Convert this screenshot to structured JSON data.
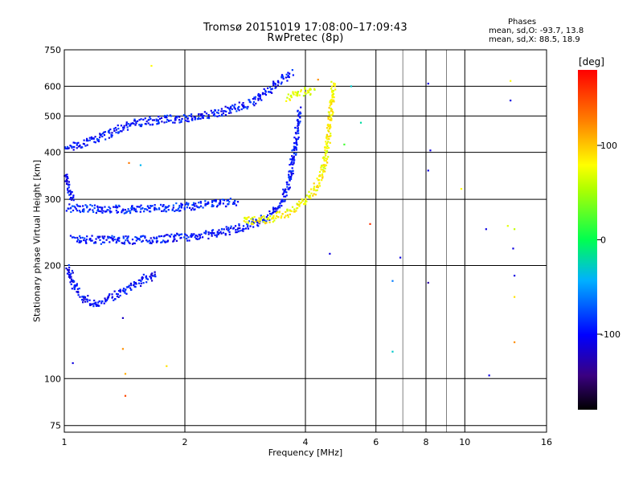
{
  "header": {
    "title_line1": "Tromsø 20151019 17:08:00–17:09:43",
    "title_line2": "RwPretec (8p)"
  },
  "stats": {
    "title": "Phases",
    "line_o": "mean, sd,O: -93.7, 13.8",
    "line_x": "mean, sd,X:  88.5, 18.9"
  },
  "chart_data": {
    "type": "scatter",
    "xlabel": "Frequency [MHz]",
    "ylabel": "Stationary phase Virtual Height [km]",
    "x_scale": "log",
    "y_scale": "log",
    "xlim": [
      1,
      16
    ],
    "ylim": [
      72,
      750
    ],
    "x_ticks": [
      1,
      2,
      4,
      6,
      8,
      10,
      16
    ],
    "x_tick_labels": [
      "1",
      "2",
      "4",
      "6",
      "8",
      "10",
      "16"
    ],
    "y_ticks": [
      75,
      100,
      200,
      300,
      400,
      500,
      600,
      750
    ],
    "y_tick_labels": [
      "75",
      "100",
      "200",
      "300",
      "400",
      "500",
      "600",
      "750"
    ],
    "colorbar": {
      "label": "[deg]",
      "range": [
        -180,
        180
      ],
      "ticks": [
        -100,
        0,
        100
      ],
      "tick_labels": [
        "-100",
        "0",
        "100"
      ]
    },
    "grid": true,
    "traces": [
      {
        "mode": "O",
        "phase": -95,
        "points": [
          [
            1.05,
            235
          ],
          [
            1.2,
            234
          ],
          [
            1.5,
            234
          ],
          [
            1.8,
            236
          ],
          [
            2.0,
            238
          ],
          [
            2.3,
            242
          ],
          [
            2.6,
            248
          ],
          [
            2.9,
            256
          ],
          [
            3.1,
            264
          ],
          [
            3.3,
            275
          ],
          [
            3.45,
            290
          ],
          [
            3.55,
            310
          ],
          [
            3.65,
            340
          ],
          [
            3.72,
            380
          ],
          [
            3.78,
            420
          ],
          [
            3.82,
            470
          ],
          [
            3.85,
            520
          ]
        ]
      },
      {
        "mode": "O-F2b",
        "phase": -90,
        "points": [
          [
            1.02,
            285
          ],
          [
            1.2,
            283
          ],
          [
            1.5,
            282
          ],
          [
            1.8,
            285
          ],
          [
            2.1,
            288
          ],
          [
            2.4,
            292
          ],
          [
            2.7,
            296
          ]
        ]
      },
      {
        "mode": "O-F1",
        "phase": -100,
        "points": [
          [
            1.02,
            200
          ],
          [
            1.05,
            180
          ],
          [
            1.1,
            165
          ],
          [
            1.2,
            158
          ],
          [
            1.4,
            170
          ],
          [
            1.6,
            185
          ],
          [
            1.7,
            190
          ]
        ]
      },
      {
        "mode": "O-high",
        "phase": -95,
        "points": [
          [
            1.0,
            410
          ],
          [
            1.1,
            420
          ],
          [
            1.3,
            450
          ],
          [
            1.5,
            480
          ],
          [
            1.8,
            490
          ],
          [
            2.1,
            495
          ],
          [
            2.5,
            515
          ],
          [
            2.9,
            540
          ],
          [
            3.2,
            580
          ],
          [
            3.5,
            625
          ],
          [
            3.7,
            650
          ]
        ]
      },
      {
        "mode": "O-low",
        "phase": -105,
        "points": [
          [
            1.0,
            350
          ],
          [
            1.03,
            320
          ],
          [
            1.05,
            300
          ]
        ]
      },
      {
        "mode": "X",
        "phase": 80,
        "points": [
          [
            2.8,
            262
          ],
          [
            3.2,
            265
          ],
          [
            3.6,
            275
          ],
          [
            3.9,
            290
          ],
          [
            4.1,
            305
          ],
          [
            4.3,
            330
          ],
          [
            4.45,
            370
          ],
          [
            4.55,
            420
          ],
          [
            4.6,
            480
          ],
          [
            4.65,
            540
          ],
          [
            4.7,
            610
          ]
        ]
      },
      {
        "mode": "X-high",
        "phase": 70,
        "points": [
          [
            3.6,
            560
          ],
          [
            3.8,
            575
          ],
          [
            4.0,
            580
          ],
          [
            4.2,
            585
          ]
        ]
      }
    ],
    "scattered_points": [
      {
        "x": 1.65,
        "y": 680,
        "phase": 80
      },
      {
        "x": 1.45,
        "y": 375,
        "phase": 130
      },
      {
        "x": 1.55,
        "y": 370,
        "phase": -40
      },
      {
        "x": 1.4,
        "y": 120,
        "phase": 120
      },
      {
        "x": 1.42,
        "y": 103,
        "phase": 110
      },
      {
        "x": 1.42,
        "y": 90,
        "phase": 150
      },
      {
        "x": 1.8,
        "y": 108,
        "phase": 90
      },
      {
        "x": 1.4,
        "y": 145,
        "phase": -120
      },
      {
        "x": 1.05,
        "y": 110,
        "phase": -110
      },
      {
        "x": 5.5,
        "y": 480,
        "phase": -20
      },
      {
        "x": 5.2,
        "y": 600,
        "phase": -30
      },
      {
        "x": 5.0,
        "y": 420,
        "phase": 20
      },
      {
        "x": 6.6,
        "y": 182,
        "phase": -60
      },
      {
        "x": 6.6,
        "y": 118,
        "phase": -30
      },
      {
        "x": 8.1,
        "y": 610,
        "phase": -110
      },
      {
        "x": 8.1,
        "y": 358,
        "phase": -110
      },
      {
        "x": 8.2,
        "y": 405,
        "phase": -110
      },
      {
        "x": 8.1,
        "y": 180,
        "phase": -130
      },
      {
        "x": 9.8,
        "y": 320,
        "phase": 80
      },
      {
        "x": 11.3,
        "y": 250,
        "phase": -110
      },
      {
        "x": 11.5,
        "y": 102,
        "phase": -110
      },
      {
        "x": 13.0,
        "y": 620,
        "phase": 80
      },
      {
        "x": 13.0,
        "y": 550,
        "phase": -110
      },
      {
        "x": 13.2,
        "y": 222,
        "phase": -110
      },
      {
        "x": 13.3,
        "y": 188,
        "phase": -110
      },
      {
        "x": 13.3,
        "y": 165,
        "phase": 90
      },
      {
        "x": 13.3,
        "y": 125,
        "phase": 120
      },
      {
        "x": 13.3,
        "y": 250,
        "phase": 60
      },
      {
        "x": 12.8,
        "y": 255,
        "phase": 70
      },
      {
        "x": 5.8,
        "y": 258,
        "phase": 160
      },
      {
        "x": 6.9,
        "y": 210,
        "phase": -110
      },
      {
        "x": 4.6,
        "y": 215,
        "phase": -110
      },
      {
        "x": 4.3,
        "y": 625,
        "phase": 120
      }
    ]
  }
}
